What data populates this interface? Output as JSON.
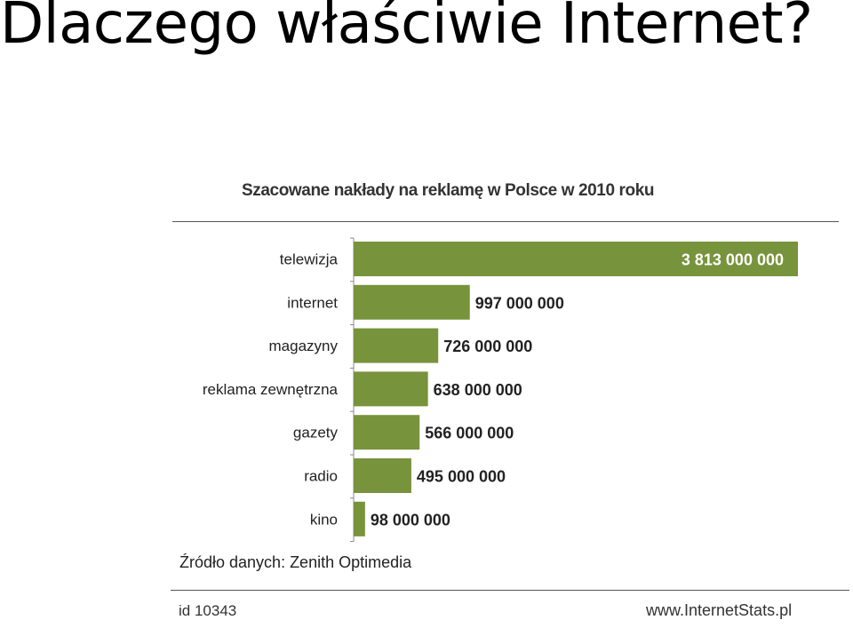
{
  "slide": {
    "title": "Dlaczego właściwie Internet?"
  },
  "source_text": "Źródło danych: Zenith Optimedia",
  "footer": {
    "id_text": "id 10343",
    "site_text": "www.InternetStats.pl"
  },
  "colors": {
    "bar": "#77933c",
    "bar_label_inside": "#ffffff",
    "bar_label_outside": "#222222"
  },
  "chart_data": {
    "type": "bar",
    "orientation": "horizontal",
    "title": "Szacowane nakłady na reklamę w Polsce w 2010 roku",
    "categories": [
      "telewizja",
      "internet",
      "magazyny",
      "reklama zewnętrzna",
      "gazety",
      "radio",
      "kino"
    ],
    "values": [
      3813000000,
      997000000,
      726000000,
      638000000,
      566000000,
      495000000,
      98000000
    ],
    "value_labels": [
      "3 813 000 000",
      "997 000 000",
      "726 000 000",
      "638 000 000",
      "566 000 000",
      "495 000 000",
      "98 000 000"
    ],
    "xlim": [
      0,
      3813000000
    ],
    "grid": false,
    "legend": "none"
  }
}
